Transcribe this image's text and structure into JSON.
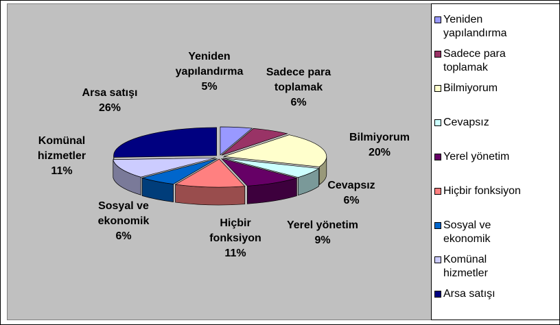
{
  "chart_data": {
    "type": "pie",
    "categories": [
      "Yeniden yapılandırma",
      "Sadece para toplamak",
      "Bilmiyorum",
      "Cevapsız",
      "Yerel yönetim",
      "Hiçbir fonksiyon",
      "Sosyal ve ekonomik",
      "Komünal hizmetler",
      "Arsa satışı"
    ],
    "values": [
      5,
      6,
      20,
      6,
      9,
      11,
      6,
      11,
      26
    ],
    "value_labels": [
      "5%",
      "6%",
      "20%",
      "6%",
      "9%",
      "11%",
      "6%",
      "11%",
      "26%"
    ],
    "colors": [
      "#9999ff",
      "#993366",
      "#ffffcc",
      "#ccffff",
      "#660066",
      "#ff8080",
      "#0066cc",
      "#ccccff",
      "#000080"
    ],
    "legend": "right",
    "three_d": true
  }
}
